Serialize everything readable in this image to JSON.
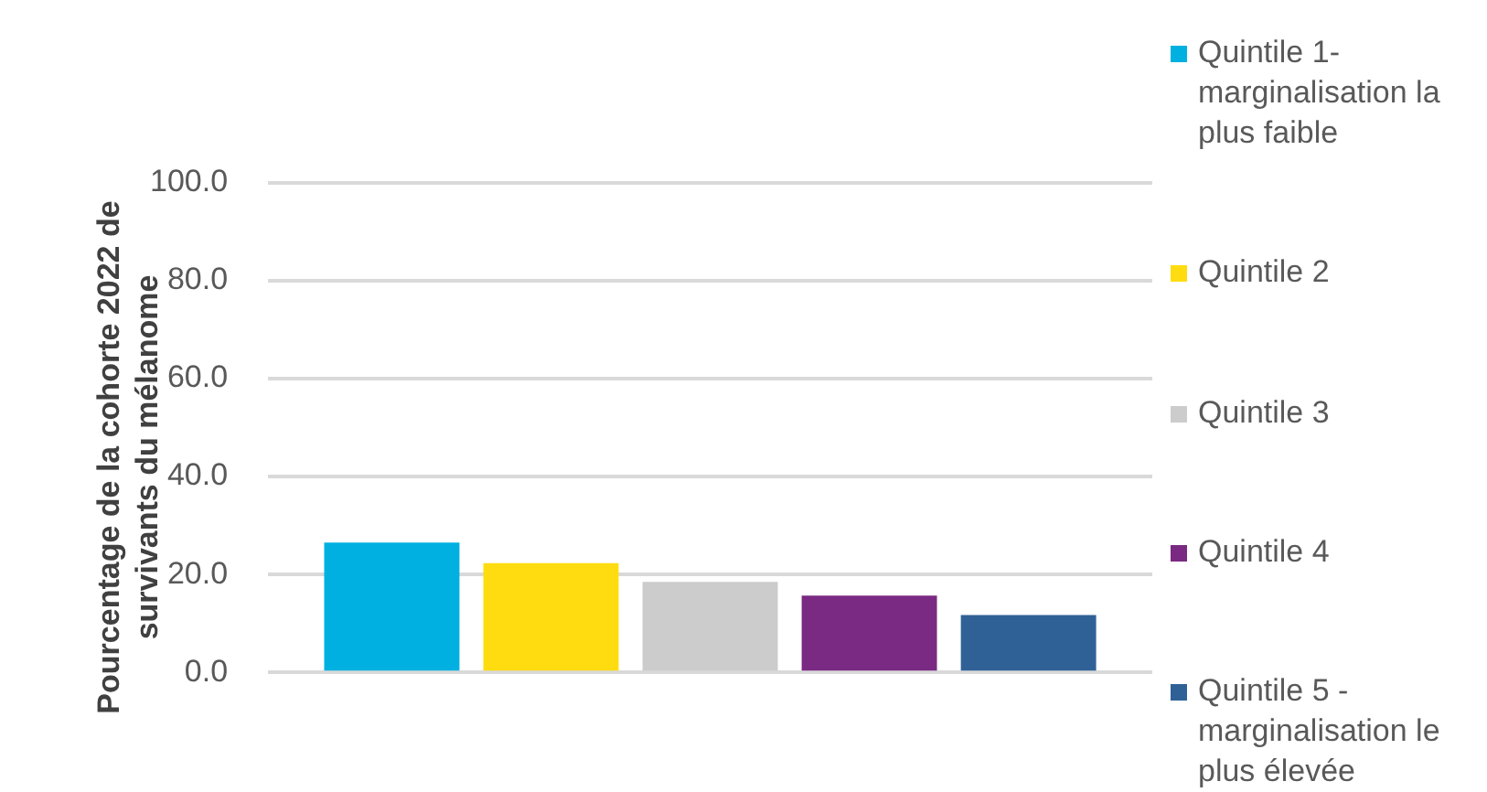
{
  "chart_data": {
    "type": "bar",
    "ylabel": "Pourcentage de la cohorte 2022 de survivants du mélanome",
    "categories": [
      null
    ],
    "series": [
      {
        "name": "Quintile 1-marginalisation la plus faible",
        "color": "#00b0e0",
        "values": [
          26.5
        ]
      },
      {
        "name": "Quintile 2",
        "color": "#ffdc10",
        "values": [
          22.3
        ]
      },
      {
        "name": "Quintile 3",
        "color": "#cccccc",
        "values": [
          18.5
        ]
      },
      {
        "name": "Quintile 4",
        "color": "#7a2a82",
        "values": [
          15.7
        ]
      },
      {
        "name": "Quintile 5 - marginalisation le plus élevée",
        "color": "#306196",
        "values": [
          11.7
        ]
      }
    ],
    "ylim": [
      0,
      100
    ],
    "yticks": [
      {
        "value": 0,
        "label": "0.0"
      },
      {
        "value": 20,
        "label": "20.0"
      },
      {
        "value": 40,
        "label": "40.0"
      },
      {
        "value": 60,
        "label": "60.0"
      },
      {
        "value": 80,
        "label": "80.0"
      },
      {
        "value": 100,
        "label": "100.0"
      }
    ],
    "grid": "y",
    "legend": "right"
  }
}
